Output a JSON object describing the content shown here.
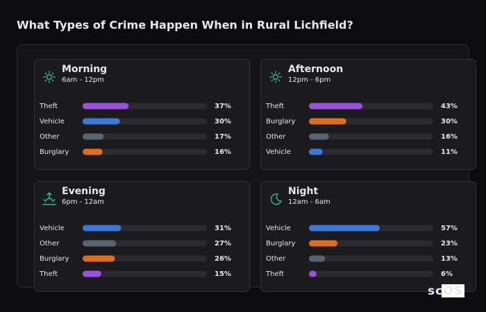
{
  "title": "What Types of Crime Happen When in Rural Lichfield?",
  "logo": "scOS",
  "chart_data": [
    {
      "type": "bar",
      "title": "Morning",
      "subtitle": "6am - 12pm",
      "categories": [
        "Theft",
        "Vehicle",
        "Other",
        "Burglary"
      ],
      "values": [
        37,
        30,
        17,
        16
      ],
      "value_labels": [
        "37%",
        "30%",
        "17%",
        "16%"
      ],
      "colors": [
        "#9b51e0",
        "#3b78d8",
        "#5c6370",
        "#e06c1e"
      ],
      "xlim": [
        0,
        100
      ]
    },
    {
      "type": "bar",
      "title": "Afternoon",
      "subtitle": "12pm - 6pm",
      "categories": [
        "Theft",
        "Burglary",
        "Other",
        "Vehicle"
      ],
      "values": [
        43,
        30,
        16,
        11
      ],
      "value_labels": [
        "43%",
        "30%",
        "16%",
        "11%"
      ],
      "colors": [
        "#9b51e0",
        "#e06c1e",
        "#5c6370",
        "#3b78d8"
      ],
      "xlim": [
        0,
        100
      ]
    },
    {
      "type": "bar",
      "title": "Evening",
      "subtitle": "6pm - 12am",
      "categories": [
        "Vehicle",
        "Other",
        "Burglary",
        "Theft"
      ],
      "values": [
        31,
        27,
        26,
        15
      ],
      "value_labels": [
        "31%",
        "27%",
        "26%",
        "15%"
      ],
      "colors": [
        "#3b78d8",
        "#5c6370",
        "#e06c1e",
        "#9b51e0"
      ],
      "xlim": [
        0,
        100
      ]
    },
    {
      "type": "bar",
      "title": "Night",
      "subtitle": "12am - 6am",
      "categories": [
        "Vehicle",
        "Burglary",
        "Other",
        "Theft"
      ],
      "values": [
        57,
        23,
        13,
        6
      ],
      "value_labels": [
        "57%",
        "23%",
        "13%",
        "6%"
      ],
      "colors": [
        "#3b78d8",
        "#e06c1e",
        "#5c6370",
        "#9b51e0"
      ],
      "xlim": [
        0,
        100
      ]
    }
  ]
}
